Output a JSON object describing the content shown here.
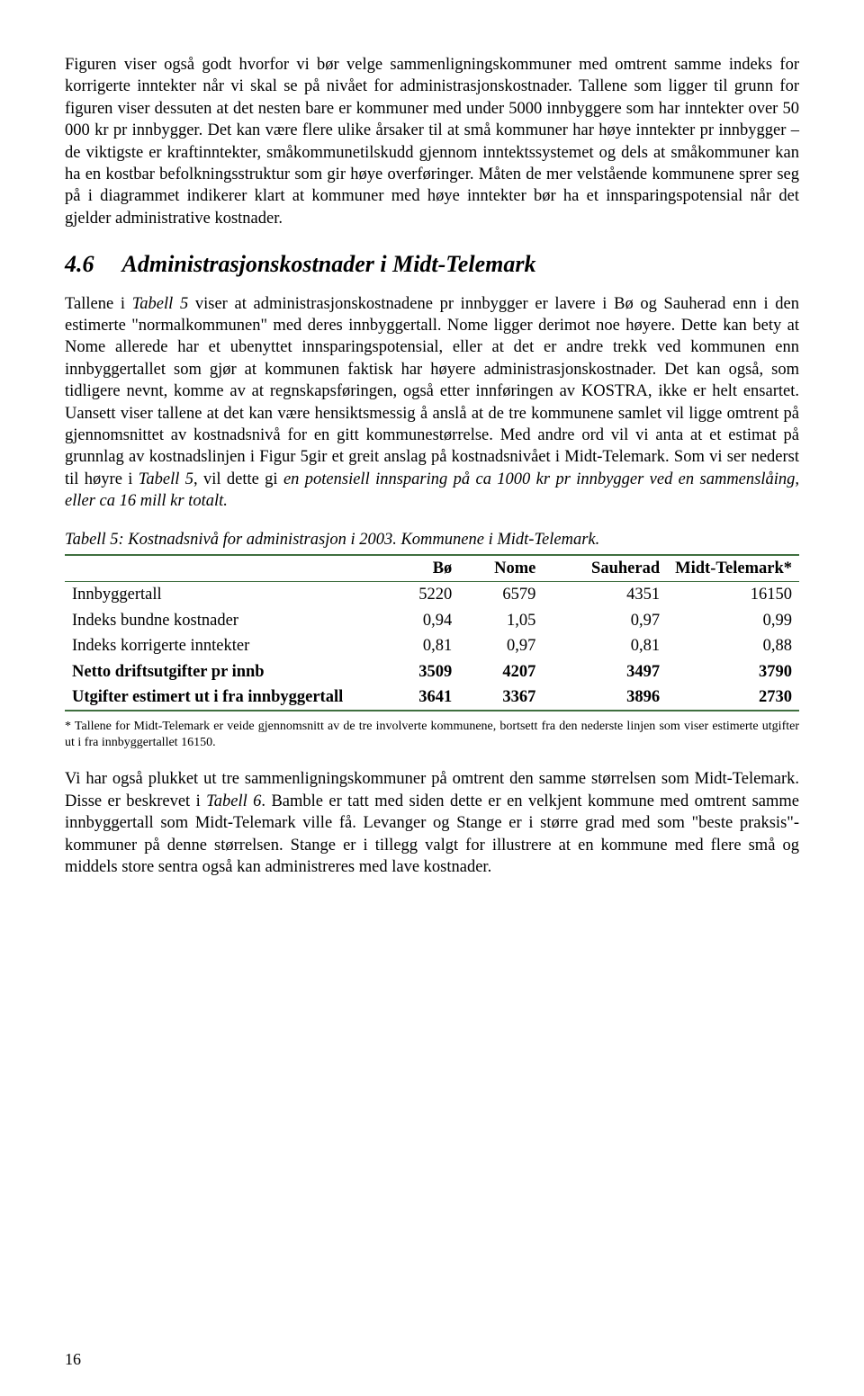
{
  "para1": "Figuren viser også godt hvorfor vi bør velge sammenligningskommuner med omtrent samme indeks for korrigerte inntekter når vi skal se på nivået for administrasjonskostnader. Tallene som ligger til grunn for figuren viser dessuten at det nesten bare er kommuner med under 5000 innbyggere som har inntekter over 50 000 kr pr innbygger. Det kan være flere ulike årsaker til at små kommuner har høye inntekter pr innbygger – de viktigste er kraftinntekter, småkommunetilskudd gjennom inntektssystemet og dels at småkommuner kan ha en kostbar befolkningsstruktur som gir høye overføringer. Måten de mer velstående kommunene sprer seg på i diagrammet indikerer klart at kommuner med høye inntekter bør ha et innsparingspotensial når det gjelder administrative kostnader.",
  "heading": {
    "num": "4.6",
    "title": "Administrasjonskostnader i Midt-Telemark"
  },
  "para2_parts": [
    {
      "t": "Tallene i ",
      "i": false
    },
    {
      "t": "Tabell 5",
      "i": true
    },
    {
      "t": " viser at administrasjonskostnadene pr innbygger er lavere i Bø og Sauherad enn i den estimerte \"normalkommunen\" med deres innbyggertall. Nome ligger derimot noe høyere. Dette kan bety at Nome allerede har et ubenyttet innsparingspotensial, eller at det er andre trekk ved kommunen enn innbyggertallet som gjør at kommunen faktisk har høyere administrasjonskostnader. Det kan også, som tidligere nevnt, komme av at regnskapsføringen, også etter innføringen av KOSTRA, ikke er helt ensartet. Uansett viser tallene at det kan være hensiktsmessig å anslå at de tre kommunene samlet vil ligge omtrent på gjennomsnittet av kostnadsnivå for en gitt kommunestørrelse. Med andre ord vil vi anta at et estimat på grunnlag av kostnadslinjen i Figur 5gir et greit anslag på kostnadsnivået i Midt-Telemark. Som vi ser nederst til høyre i ",
      "i": false
    },
    {
      "t": "Tabell 5",
      "i": true
    },
    {
      "t": ", vil dette gi ",
      "i": false
    },
    {
      "t": "en potensiell innsparing på ca 1000 kr pr innbygger ved en sammenslåing, eller ca 16 mill kr totalt.",
      "i": true
    }
  ],
  "table": {
    "caption": "Tabell 5: Kostnadsnivå for administrasjon i 2003. Kommunene i Midt-Telemark.",
    "columns": [
      "",
      "Bø",
      "Nome",
      "Sauherad",
      "Midt-Telemark*"
    ],
    "rows": [
      {
        "label": "Innbyggertall",
        "vals": [
          "5220",
          "6579",
          "4351",
          "16150"
        ],
        "bold": false
      },
      {
        "label": "Indeks bundne kostnader",
        "vals": [
          "0,94",
          "1,05",
          "0,97",
          "0,99"
        ],
        "bold": false
      },
      {
        "label": "Indeks korrigerte inntekter",
        "vals": [
          "0,81",
          "0,97",
          "0,81",
          "0,88"
        ],
        "bold": false
      },
      {
        "label": "Netto driftsutgifter pr innb",
        "vals": [
          "3509",
          "4207",
          "3497",
          "3790"
        ],
        "bold": true
      },
      {
        "label": "Utgifter estimert ut i fra innbyggertall",
        "vals": [
          "3641",
          "3367",
          "3896",
          "2730"
        ],
        "bold": true
      }
    ],
    "border_color": "#3f6f3f"
  },
  "footnote": "* Tallene for Midt-Telemark er veide gjennomsnitt av de tre involverte kommunene, bortsett fra den nederste linjen som viser estimerte utgifter ut i fra innbyggertallet 16150.",
  "para3_parts": [
    {
      "t": "Vi har også plukket ut tre sammenligningskommuner på omtrent den samme størrelsen som Midt-Telemark. Disse er beskrevet i ",
      "i": false
    },
    {
      "t": "Tabell 6",
      "i": true
    },
    {
      "t": ". Bamble er tatt med siden dette er en velkjent kommune med omtrent samme innbyggertall som Midt-Telemark ville få. Levanger og Stange er i større grad med som \"beste praksis\"-kommuner på denne størrelsen. Stange er i tillegg valgt for illustrere at en kommune med flere små og middels store sentra også kan administreres med lave kostnader.",
      "i": false
    }
  ],
  "page_number": "16"
}
